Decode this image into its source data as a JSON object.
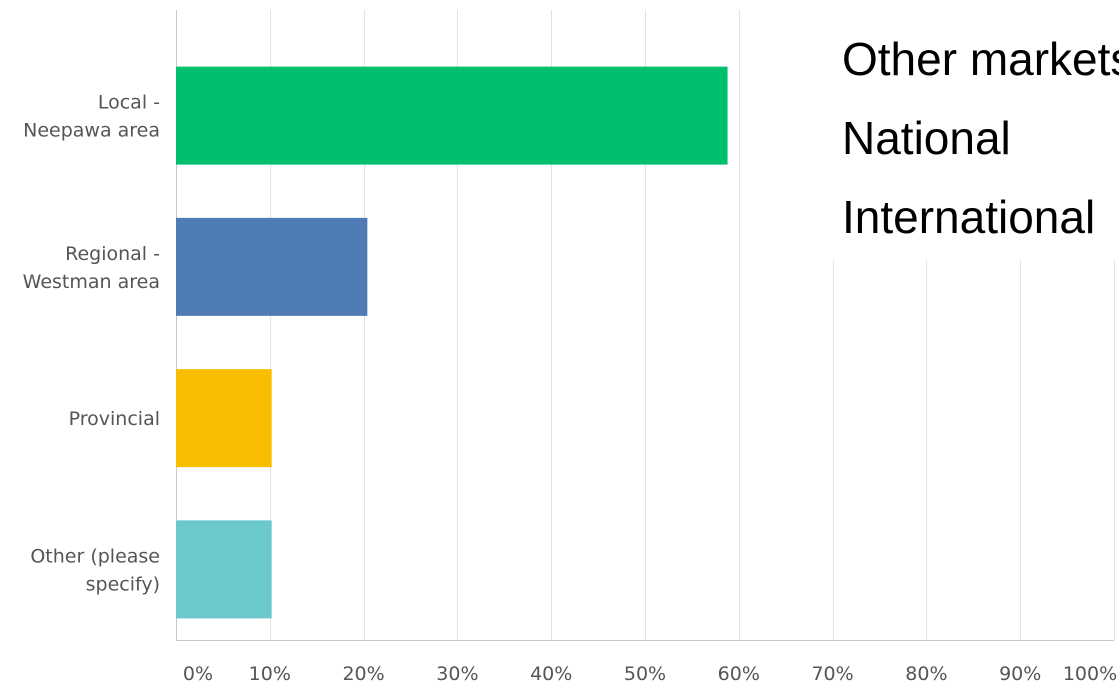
{
  "chart_data": {
    "type": "bar",
    "orientation": "horizontal",
    "categories": [
      [
        "Local -",
        "Neepawa area"
      ],
      [
        "Regional -",
        "Westman area"
      ],
      [
        "Provincial"
      ],
      [
        "Other (please",
        "specify)"
      ]
    ],
    "values": [
      58.8,
      20.4,
      10.2,
      10.2
    ],
    "colors": [
      "#00bf6f",
      "#507cb6",
      "#f9be00",
      "#6bc8cd"
    ],
    "xlim": [
      0,
      100
    ],
    "xticks": [
      "0%",
      "10%",
      "20%",
      "30%",
      "40%",
      "50%",
      "60%",
      "70%",
      "80%",
      "90%",
      "100%"
    ],
    "grid": true
  },
  "overlay": {
    "lines": [
      "Other markets:",
      "National",
      "International"
    ]
  }
}
